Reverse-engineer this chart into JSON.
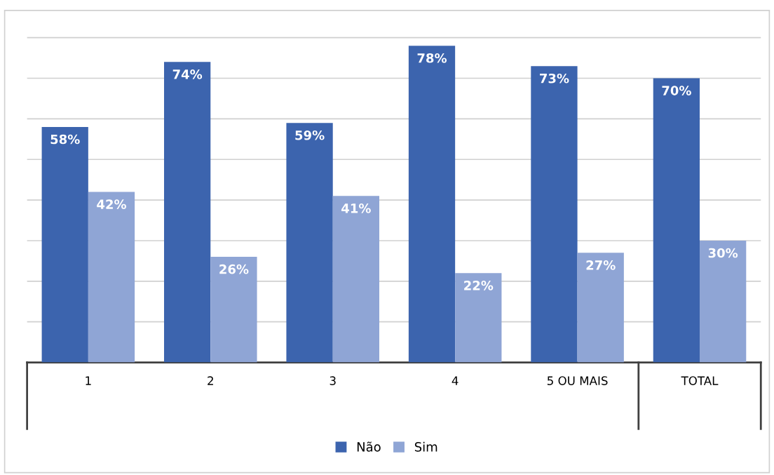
{
  "chart_data": {
    "type": "bar",
    "categories": [
      "1",
      "2",
      "3",
      "4",
      "5 OU MAIS",
      "TOTAL"
    ],
    "series": [
      {
        "name": "Não",
        "color": "#3c64ae",
        "values": [
          58,
          74,
          59,
          78,
          73,
          70
        ],
        "value_labels": [
          "58%",
          "74%",
          "59%",
          "78%",
          "73%",
          "70%"
        ]
      },
      {
        "name": "Sim",
        "color": "#8fa5d5",
        "values": [
          42,
          26,
          41,
          22,
          27,
          30
        ],
        "value_labels": [
          "42%",
          "26%",
          "41%",
          "22%",
          "27%",
          "30%"
        ]
      }
    ],
    "tick_labels": "x",
    "grid": "y",
    "legend": "bottom"
  }
}
